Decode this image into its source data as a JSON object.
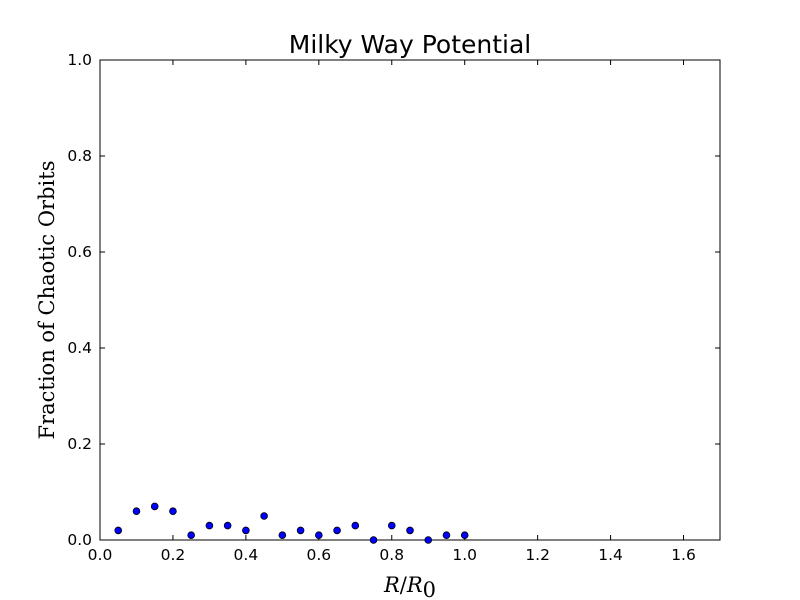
{
  "chart_data": {
    "type": "scatter",
    "title": "Milky Way Potential",
    "xlabel": "R/R_0",
    "ylabel": "Fraction of Chaotic Orbits",
    "xlim": [
      0.0,
      1.7
    ],
    "ylim": [
      0.0,
      1.0
    ],
    "xticks": [
      "0.0",
      "0.2",
      "0.4",
      "0.6",
      "0.8",
      "1.0",
      "1.2",
      "1.4",
      "1.6"
    ],
    "yticks": [
      "0.0",
      "0.2",
      "0.4",
      "0.6",
      "0.8",
      "1.0"
    ],
    "grid": false,
    "marker_color": "#0000ff",
    "x": [
      0.05,
      0.1,
      0.15,
      0.2,
      0.25,
      0.3,
      0.35,
      0.4,
      0.45,
      0.5,
      0.55,
      0.6,
      0.65,
      0.7,
      0.75,
      0.8,
      0.85,
      0.9,
      0.95,
      1.0
    ],
    "y": [
      0.02,
      0.06,
      0.07,
      0.06,
      0.01,
      0.03,
      0.03,
      0.02,
      0.05,
      0.01,
      0.02,
      0.01,
      0.02,
      0.03,
      0.0,
      0.03,
      0.02,
      0.0,
      0.01,
      0.01
    ]
  }
}
